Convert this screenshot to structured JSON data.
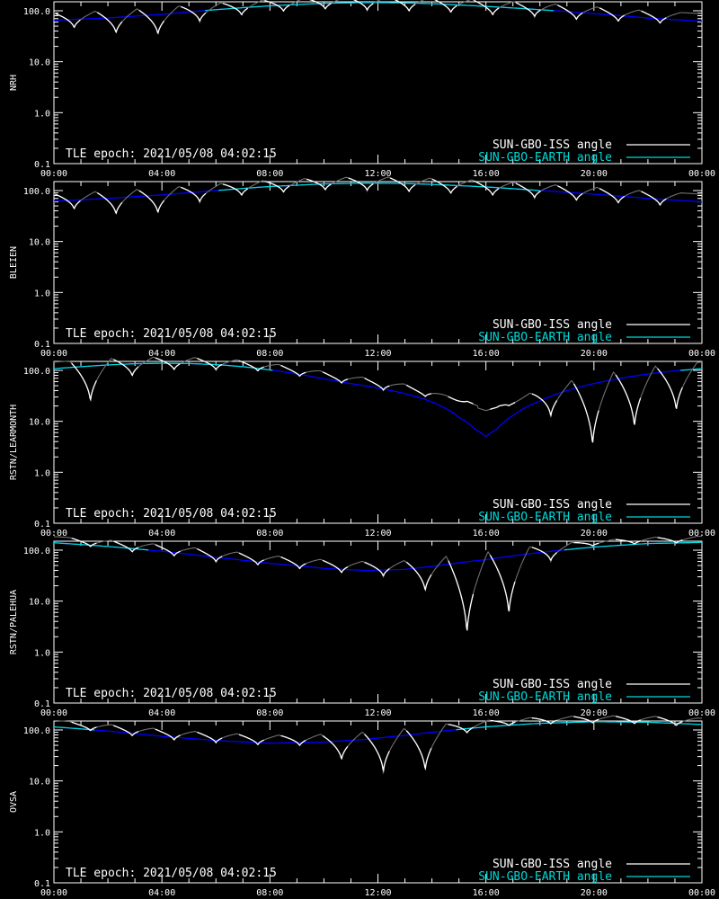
{
  "colors": {
    "background": "#000000",
    "axes": "#ffffff",
    "iss_angle_lit": "#ffffff",
    "iss_angle_shadow": "#707070",
    "earth_angle_visible": "#00d8d8",
    "earth_angle_hidden": "#0000ff"
  },
  "chart_data": [
    {
      "type": "line",
      "ylabel": "NRH",
      "xlabel": "",
      "x_tick_labels": [
        "00:00",
        "04:00",
        "08:00",
        "12:00",
        "16:00",
        "20:00",
        "00:00"
      ],
      "x_range_hours": [
        0,
        24
      ],
      "y_scale": "log",
      "y_tick_labels": [
        "100.0",
        "10.0",
        "1.0",
        "0.1"
      ],
      "ylim": [
        0.1,
        150
      ],
      "annotation": "TLE epoch: 2021/05/08 04:02:15",
      "legend": {
        "placement": "bottom-right",
        "entries": [
          {
            "label": "SUN-GBO-ISS angle",
            "color": "#ffffff"
          },
          {
            "label": "SUN-GBO-EARTH angle",
            "color": "#00d8d8"
          }
        ]
      },
      "series": [
        {
          "name": "SUN-GBO-EARTH angle",
          "x": [
            0,
            2,
            4,
            6,
            8,
            10,
            11.5,
            13,
            14,
            16,
            18,
            20,
            22,
            24
          ],
          "y": [
            65,
            72,
            85,
            105,
            125,
            140,
            145,
            143,
            138,
            122,
            105,
            88,
            72,
            62
          ]
        },
        {
          "name": "SUN-GBO-ISS angle",
          "orbit_period_hours": 1.54,
          "dips": [
            {
              "x": 0.75,
              "y": 45
            },
            {
              "x": 2.3,
              "y": 35
            },
            {
              "x": 3.85,
              "y": 33
            },
            {
              "x": 5.4,
              "y": 60
            },
            {
              "x": 6.95,
              "y": 80
            },
            {
              "x": 8.5,
              "y": 95
            },
            {
              "x": 10.05,
              "y": 105
            },
            {
              "x": 11.6,
              "y": 100
            },
            {
              "x": 13.15,
              "y": 95
            },
            {
              "x": 14.7,
              "y": 90
            },
            {
              "x": 16.25,
              "y": 80
            },
            {
              "x": 17.8,
              "y": 75
            },
            {
              "x": 19.35,
              "y": 65
            },
            {
              "x": 20.9,
              "y": 60
            },
            {
              "x": 22.45,
              "y": 55
            }
          ]
        }
      ]
    },
    {
      "type": "line",
      "ylabel": "BLEIEN",
      "xlabel": "",
      "x_tick_labels": [
        "00:00",
        "04:00",
        "08:00",
        "12:00",
        "16:00",
        "20:00",
        "00:00"
      ],
      "x_range_hours": [
        0,
        24
      ],
      "y_scale": "log",
      "y_tick_labels": [
        "100.0",
        "10.0",
        "1.0",
        "0.1"
      ],
      "ylim": [
        0.1,
        150
      ],
      "annotation": "TLE epoch: 2021/05/08 04:02:15",
      "legend": {
        "placement": "bottom-right",
        "entries": [
          {
            "label": "SUN-GBO-ISS angle",
            "color": "#ffffff"
          },
          {
            "label": "SUN-GBO-EARTH angle",
            "color": "#00d8d8"
          }
        ]
      },
      "series": [
        {
          "name": "SUN-GBO-EARTH angle",
          "x": [
            0,
            2,
            4,
            6,
            8,
            10,
            11.5,
            13,
            14,
            16,
            18,
            20,
            22,
            24
          ],
          "y": [
            62,
            70,
            82,
            100,
            120,
            135,
            140,
            138,
            132,
            118,
            100,
            85,
            70,
            60
          ]
        },
        {
          "name": "SUN-GBO-ISS angle",
          "orbit_period_hours": 1.54,
          "dips": [
            {
              "x": 0.75,
              "y": 42
            },
            {
              "x": 2.3,
              "y": 33
            },
            {
              "x": 3.85,
              "y": 35
            },
            {
              "x": 5.4,
              "y": 58
            },
            {
              "x": 6.95,
              "y": 78
            },
            {
              "x": 8.5,
              "y": 90
            },
            {
              "x": 10.05,
              "y": 100
            },
            {
              "x": 11.6,
              "y": 98
            },
            {
              "x": 13.15,
              "y": 92
            },
            {
              "x": 14.7,
              "y": 85
            },
            {
              "x": 16.25,
              "y": 78
            },
            {
              "x": 17.8,
              "y": 70
            },
            {
              "x": 19.35,
              "y": 62
            },
            {
              "x": 20.9,
              "y": 55
            },
            {
              "x": 22.45,
              "y": 50
            }
          ]
        }
      ]
    },
    {
      "type": "line",
      "ylabel": "RSTN/LEARMONTH",
      "xlabel": "",
      "x_tick_labels": [
        "00:00",
        "04:00",
        "08:00",
        "12:00",
        "16:00",
        "20:00",
        "00:00"
      ],
      "x_range_hours": [
        0,
        24
      ],
      "y_scale": "log",
      "y_tick_labels": [
        "100.0",
        "10.0",
        "1.0",
        "0.1"
      ],
      "ylim": [
        0.1,
        150
      ],
      "annotation": "TLE epoch: 2021/05/08 04:02:15",
      "legend": {
        "placement": "bottom-right",
        "entries": [
          {
            "label": "SUN-GBO-ISS angle",
            "color": "#ffffff"
          },
          {
            "label": "SUN-GBO-EARTH angle",
            "color": "#00d8d8"
          }
        ]
      },
      "series": [
        {
          "name": "SUN-GBO-EARTH angle",
          "x": [
            0,
            1,
            2,
            3,
            4,
            5,
            6,
            7,
            8,
            9,
            10,
            11,
            12,
            13,
            14,
            15,
            15.6,
            16,
            16.4,
            17,
            18,
            19,
            20,
            21,
            22,
            23,
            24
          ],
          "y": [
            108,
            118,
            128,
            135,
            138,
            136,
            130,
            118,
            102,
            85,
            68,
            55,
            45,
            35,
            24,
            12,
            7,
            5,
            7,
            13,
            25,
            40,
            55,
            70,
            85,
            98,
            108
          ]
        },
        {
          "name": "SUN-GBO-ISS angle",
          "orbit_period_hours": 1.54,
          "dips": [
            {
              "x": 1.35,
              "y": 23
            },
            {
              "x": 2.9,
              "y": 75
            },
            {
              "x": 4.45,
              "y": 100
            },
            {
              "x": 6.0,
              "y": 100
            },
            {
              "x": 7.55,
              "y": 95
            },
            {
              "x": 9.1,
              "y": 75
            },
            {
              "x": 10.65,
              "y": 55
            },
            {
              "x": 12.2,
              "y": 40
            },
            {
              "x": 13.75,
              "y": 30
            },
            {
              "x": 15.3,
              "y": 25
            },
            {
              "x": 16.85,
              "y": 20
            },
            {
              "x": 18.4,
              "y": 12
            },
            {
              "x": 19.95,
              "y": 3
            },
            {
              "x": 21.5,
              "y": 7
            },
            {
              "x": 23.05,
              "y": 15
            }
          ]
        }
      ]
    },
    {
      "type": "line",
      "ylabel": "RSTN/PALEHUA",
      "xlabel": "",
      "x_tick_labels": [
        "00:00",
        "04:00",
        "08:00",
        "12:00",
        "16:00",
        "20:00",
        "00:00"
      ],
      "x_range_hours": [
        0,
        24
      ],
      "y_scale": "log",
      "y_tick_labels": [
        "100.0",
        "10.0",
        "1.0",
        "0.1"
      ],
      "ylim": [
        0.1,
        150
      ],
      "annotation": "TLE epoch: 2021/05/08 04:02:15",
      "legend": {
        "placement": "bottom-right",
        "entries": [
          {
            "label": "SUN-GBO-ISS angle",
            "color": "#ffffff"
          },
          {
            "label": "SUN-GBO-EARTH angle",
            "color": "#00d8d8"
          }
        ]
      },
      "series": [
        {
          "name": "SUN-GBO-EARTH angle",
          "x": [
            0,
            2,
            4,
            6,
            8,
            10,
            11.5,
            13,
            14,
            16,
            18,
            20,
            22,
            24
          ],
          "y": [
            140,
            118,
            95,
            72,
            55,
            44,
            40,
            42,
            48,
            65,
            90,
            115,
            135,
            142
          ]
        },
        {
          "name": "SUN-GBO-ISS angle",
          "orbit_period_hours": 1.54,
          "dips": [
            {
              "x": 1.35,
              "y": 115
            },
            {
              "x": 2.9,
              "y": 90
            },
            {
              "x": 4.45,
              "y": 75
            },
            {
              "x": 6.0,
              "y": 58
            },
            {
              "x": 7.55,
              "y": 50
            },
            {
              "x": 9.1,
              "y": 42
            },
            {
              "x": 10.65,
              "y": 35
            },
            {
              "x": 12.2,
              "y": 30
            },
            {
              "x": 13.75,
              "y": 15
            },
            {
              "x": 15.3,
              "y": 2
            },
            {
              "x": 16.85,
              "y": 5
            },
            {
              "x": 18.4,
              "y": 60
            },
            {
              "x": 19.95,
              "y": 120
            },
            {
              "x": 21.5,
              "y": 130
            },
            {
              "x": 23.05,
              "y": 135
            }
          ]
        }
      ]
    },
    {
      "type": "line",
      "ylabel": "OVSA",
      "xlabel": "",
      "x_tick_labels": [
        "00:00",
        "04:00",
        "08:00",
        "12:00",
        "16:00",
        "20:00",
        "00:00"
      ],
      "x_range_hours": [
        0,
        24
      ],
      "y_scale": "log",
      "y_tick_labels": [
        "100.0",
        "10.0",
        "1.0",
        "0.1"
      ],
      "ylim": [
        0.1,
        150
      ],
      "annotation": "TLE epoch: 2021/05/08 04:02:15",
      "legend": {
        "placement": "bottom-right",
        "entries": [
          {
            "label": "SUN-GBO-ISS angle",
            "color": "#ffffff"
          },
          {
            "label": "SUN-GBO-EARTH angle",
            "color": "#00d8d8"
          }
        ]
      },
      "series": [
        {
          "name": "SUN-GBO-EARTH angle",
          "x": [
            0,
            2,
            4,
            6,
            8,
            10,
            11.5,
            13,
            14,
            16,
            18,
            20,
            22,
            24
          ],
          "y": [
            115,
            95,
            75,
            62,
            55,
            58,
            65,
            78,
            90,
            115,
            135,
            145,
            142,
            128
          ]
        },
        {
          "name": "SUN-GBO-ISS angle",
          "orbit_period_hours": 1.54,
          "dips": [
            {
              "x": 1.35,
              "y": 95
            },
            {
              "x": 2.9,
              "y": 75
            },
            {
              "x": 4.45,
              "y": 62
            },
            {
              "x": 6.0,
              "y": 55
            },
            {
              "x": 7.55,
              "y": 50
            },
            {
              "x": 9.1,
              "y": 48
            },
            {
              "x": 10.65,
              "y": 25
            },
            {
              "x": 12.2,
              "y": 14
            },
            {
              "x": 13.75,
              "y": 15
            },
            {
              "x": 15.3,
              "y": 85
            },
            {
              "x": 16.85,
              "y": 120
            },
            {
              "x": 18.4,
              "y": 130
            },
            {
              "x": 19.95,
              "y": 135
            },
            {
              "x": 21.5,
              "y": 130
            },
            {
              "x": 23.05,
              "y": 120
            }
          ]
        }
      ]
    }
  ]
}
